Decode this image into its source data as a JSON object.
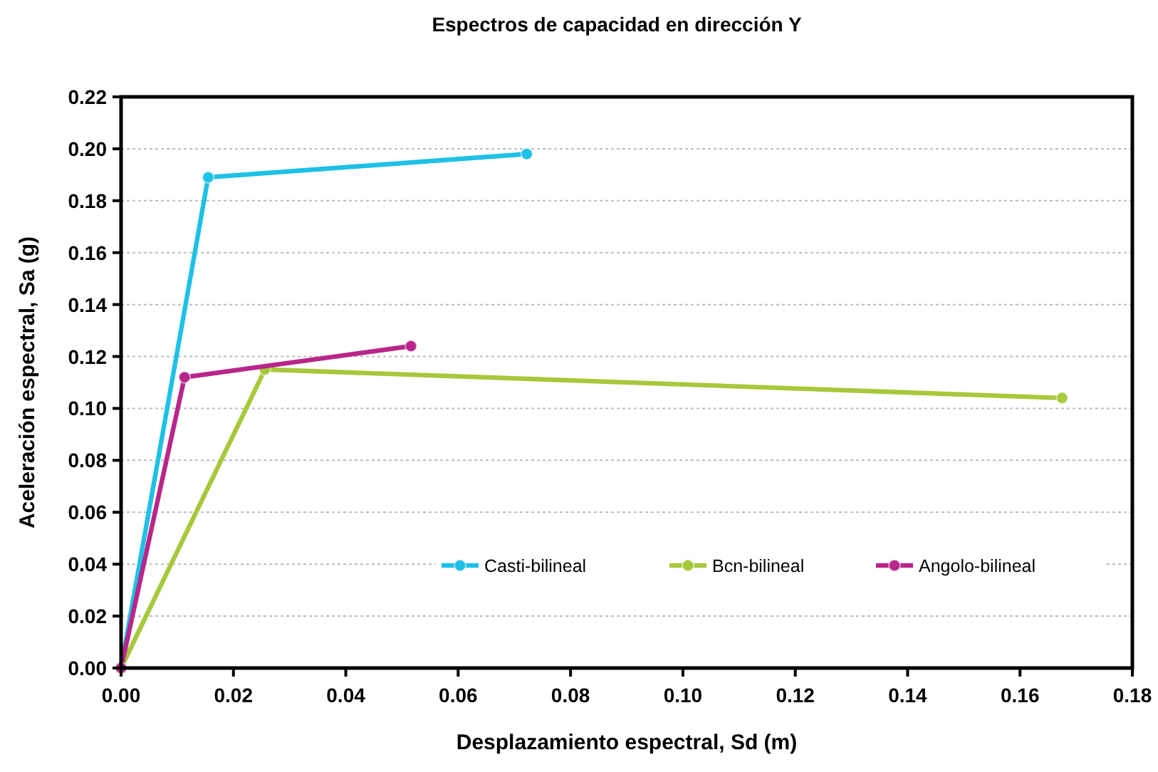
{
  "chart_data": {
    "type": "line",
    "title": "Espectros de capacidad en dirección Y",
    "xlabel": "Desplazamiento espectral, Sd (m)",
    "ylabel": "Aceleración espectral, Sa (g)",
    "xlim": [
      0,
      0.18
    ],
    "xticks": [
      {
        "value": 0,
        "label": "0.00"
      },
      {
        "value": 0.02,
        "label": "0.02"
      },
      {
        "value": 0.04,
        "label": "0.04"
      },
      {
        "value": 0.06,
        "label": "0.06"
      },
      {
        "value": 0.08,
        "label": "0.08"
      },
      {
        "value": 0.1,
        "label": "0.10"
      },
      {
        "value": 0.12,
        "label": "0.12"
      },
      {
        "value": 0.14,
        "label": "0.14"
      },
      {
        "value": 0.16,
        "label": "0.16"
      },
      {
        "value": 0.18,
        "label": "0.18"
      }
    ],
    "ylim": [
      0,
      0.22
    ],
    "yticks": [
      {
        "value": 0,
        "label": "0.00"
      },
      {
        "value": 0.02,
        "label": "0.02"
      },
      {
        "value": 0.04,
        "label": "0.04"
      },
      {
        "value": 0.06,
        "label": "0.06"
      },
      {
        "value": 0.08,
        "label": "0.08"
      },
      {
        "value": 0.1,
        "label": "0.10"
      },
      {
        "value": 0.12,
        "label": "0.12"
      },
      {
        "value": 0.14,
        "label": "0.14"
      },
      {
        "value": 0.16,
        "label": "0.16"
      },
      {
        "value": 0.18,
        "label": "0.18"
      },
      {
        "value": 0.2,
        "label": "0.20"
      },
      {
        "value": 0.22,
        "label": "0.22"
      }
    ],
    "grid": "y",
    "legend": "bottom",
    "marker": "circle",
    "line_style": "solid",
    "series": [
      {
        "name": "Casti-bilineal",
        "color": "#1ec0e6",
        "x": [
          0,
          0.0155,
          0.0722
        ],
        "values": [
          0,
          0.189,
          0.198
        ]
      },
      {
        "name": "Bcn-bilineal",
        "color": "#a6c83a",
        "x": [
          0,
          0.0256,
          0.1675
        ],
        "values": [
          0,
          0.115,
          0.104
        ]
      },
      {
        "name": "Angolo-bilineal",
        "color": "#b8268a",
        "x": [
          0,
          0.0113,
          0.0516
        ],
        "values": [
          0,
          0.112,
          0.124
        ]
      }
    ]
  }
}
